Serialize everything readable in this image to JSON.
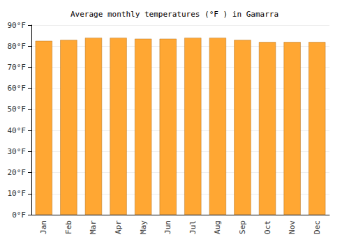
{
  "chart_data": {
    "type": "bar",
    "title": "Average monthly temperatures (°F ) in Gamarra",
    "categories": [
      "Jan",
      "Feb",
      "Mar",
      "Apr",
      "May",
      "Jun",
      "Jul",
      "Aug",
      "Sep",
      "Oct",
      "Nov",
      "Dec"
    ],
    "values": [
      82.5,
      83,
      84,
      84,
      83.5,
      83.5,
      84,
      84,
      83,
      82,
      82,
      82
    ],
    "color": "#ffa733",
    "ylim": [
      0,
      90
    ],
    "yticks": [
      {
        "value": 0,
        "label": "0°F"
      },
      {
        "value": 10,
        "label": "10°F"
      },
      {
        "value": 20,
        "label": "20°F"
      },
      {
        "value": 30,
        "label": "30°F"
      },
      {
        "value": 40,
        "label": "40°F"
      },
      {
        "value": 50,
        "label": "50°F"
      },
      {
        "value": 60,
        "label": "60°F"
      },
      {
        "value": 70,
        "label": "70°F"
      },
      {
        "value": 80,
        "label": "80°F"
      },
      {
        "value": 90,
        "label": "90°F"
      }
    ],
    "grid": true
  }
}
